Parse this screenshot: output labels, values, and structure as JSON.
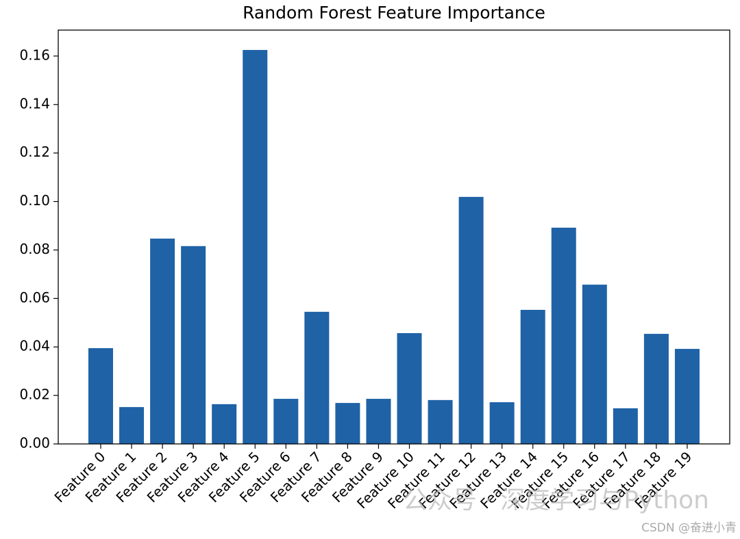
{
  "chart_data": {
    "type": "bar",
    "title": "Random Forest Feature Importance",
    "categories": [
      "Feature 0",
      "Feature 1",
      "Feature 2",
      "Feature 3",
      "Feature 4",
      "Feature 5",
      "Feature 6",
      "Feature 7",
      "Feature 8",
      "Feature 9",
      "Feature 10",
      "Feature 11",
      "Feature 12",
      "Feature 13",
      "Feature 14",
      "Feature 15",
      "Feature 16",
      "Feature 17",
      "Feature 18",
      "Feature 19"
    ],
    "values": [
      0.0395,
      0.0152,
      0.0847,
      0.0816,
      0.0164,
      0.1625,
      0.0186,
      0.0545,
      0.0169,
      0.0186,
      0.0457,
      0.0181,
      0.1019,
      0.0172,
      0.0553,
      0.0892,
      0.0657,
      0.0147,
      0.0454,
      0.0392
    ],
    "color": "#1f62a6",
    "ylim": [
      0,
      0.1707
    ],
    "yticks": [
      {
        "value": 0,
        "label": "0.00"
      },
      {
        "value": 0.02,
        "label": "0.02"
      },
      {
        "value": 0.04,
        "label": "0.04"
      },
      {
        "value": 0.06,
        "label": "0.06"
      },
      {
        "value": 0.08,
        "label": "0.08"
      },
      {
        "value": 0.1,
        "label": "0.10"
      },
      {
        "value": 0.12,
        "label": "0.12"
      },
      {
        "value": 0.14,
        "label": "0.14"
      },
      {
        "value": 0.16,
        "label": "0.16"
      }
    ],
    "grid": false,
    "watermarks": [
      "公众号 · 深度学习与Python",
      "CSDN @奋进小青"
    ]
  }
}
